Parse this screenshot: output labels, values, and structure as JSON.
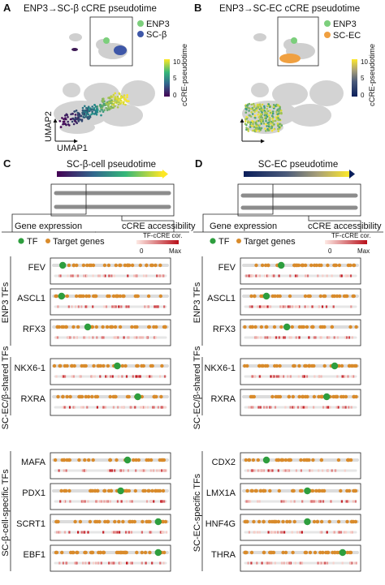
{
  "panels": {
    "A": {
      "letter": "A",
      "title": "ENP3→SC-β cCRE pseudotime",
      "legend": [
        {
          "label": "ENP3",
          "color": "#7ccf7c"
        },
        {
          "label": "SC-β",
          "color": "#3e57a8"
        }
      ],
      "colorbar": {
        "label": "cCRE-pseudotime",
        "ticks": [
          "10",
          "5",
          "0"
        ]
      },
      "axes": {
        "x": "UMAP1",
        "y": "UMAP2"
      }
    },
    "B": {
      "letter": "B",
      "title": "ENP3→SC-EC cCRE pseudotime",
      "legend": [
        {
          "label": "ENP3",
          "color": "#7ccf7c"
        },
        {
          "label": "SC-EC",
          "color": "#f0a040"
        }
      ],
      "colorbar": {
        "label": "cCRE-pseudotime",
        "ticks": [
          "10",
          "5",
          "0"
        ]
      }
    },
    "C": {
      "letter": "C",
      "pseudotime_label": "SC-β-cell pseudotime",
      "gene_expression": "Gene expression",
      "ccre_access": "cCRE accessibility",
      "legend_tf": "TF",
      "legend_targets": "Target genes",
      "corr_label": "TF-cCRE cor.",
      "corr_min": "0",
      "corr_max": "Max",
      "groups": [
        {
          "label": "ENP3 TFs",
          "genes": [
            {
              "name": "FEV",
              "tf_pos": 0.08
            },
            {
              "name": "ASCL1",
              "tf_pos": 0.07
            },
            {
              "name": "RFX3",
              "tf_pos": 0.3
            }
          ]
        },
        {
          "label": "SC-EC/β-shared TFs",
          "genes": [
            {
              "name": "NKX6-1",
              "tf_pos": 0.56
            },
            {
              "name": "RXRA",
              "tf_pos": 0.74
            }
          ]
        },
        {
          "label": "SC-β-cell-specific TFs",
          "genes": [
            {
              "name": "MAFA",
              "tf_pos": 0.65
            },
            {
              "name": "PDX1",
              "tf_pos": 0.59
            },
            {
              "name": "SCRT1",
              "tf_pos": 0.92
            },
            {
              "name": "EBF1",
              "tf_pos": 0.92
            }
          ]
        }
      ]
    },
    "D": {
      "letter": "D",
      "pseudotime_label": "SC-EC pseudotime",
      "gene_expression": "Gene expression",
      "ccre_access": "cCRE accessibility",
      "legend_tf": "TF",
      "legend_targets": "Target genes",
      "corr_label": "TF-cCRE cor.",
      "corr_min": "0",
      "corr_max": "Max",
      "groups": [
        {
          "label": "ENP3 TFs",
          "genes": [
            {
              "name": "FEV",
              "tf_pos": 0.33
            },
            {
              "name": "ASCL1",
              "tf_pos": 0.2
            },
            {
              "name": "RFX3",
              "tf_pos": 0.38
            }
          ]
        },
        {
          "label": "SC-EC/β-shared TFs",
          "genes": [
            {
              "name": "NKX6-1",
              "tf_pos": 0.8
            },
            {
              "name": "RXRA",
              "tf_pos": 0.73
            }
          ]
        },
        {
          "label": "SC-EC-specific TFs",
          "genes": [
            {
              "name": "CDX2",
              "tf_pos": 0.2
            },
            {
              "name": "LMX1A",
              "tf_pos": 0.56
            },
            {
              "name": "HNF4G",
              "tf_pos": 0.56
            },
            {
              "name": "THRA",
              "tf_pos": 0.87
            }
          ]
        }
      ]
    }
  },
  "colors": {
    "tf": "#2e9e3e",
    "target": "#d98b2b",
    "gray": "#8c8c8c",
    "light_gray": "#dcdcdc",
    "corr_high": "#c0141c",
    "corr_low": "#f7d2cc",
    "pseudo_start": "#440154",
    "pseudo_mid": "#21908c",
    "pseudo_end": "#fde725"
  }
}
